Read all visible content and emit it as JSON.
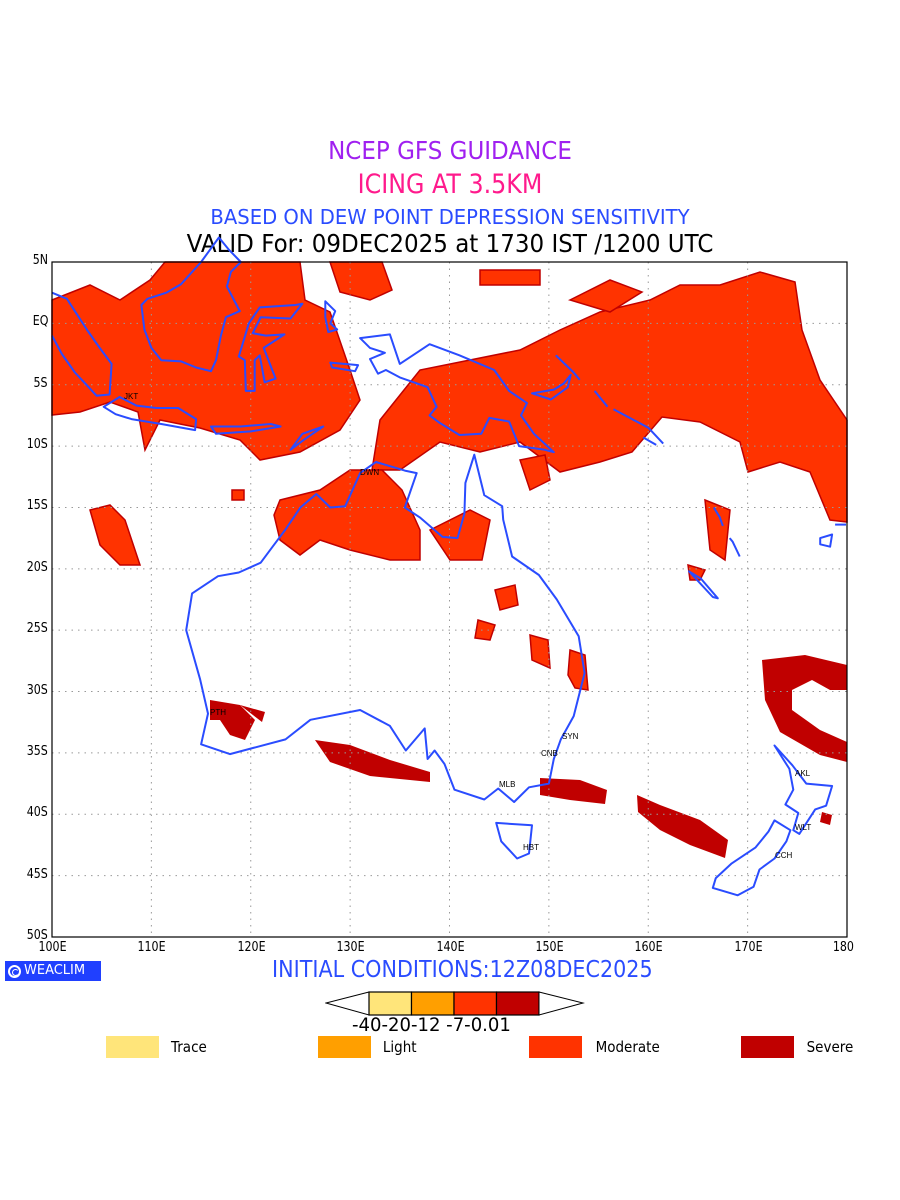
{
  "title": {
    "line1": "NCEP GFS GUIDANCE",
    "line2": "ICING AT 3.5KM",
    "line3": "BASED ON DEW POINT DEPRESSION SENSITIVITY",
    "line4": "VALID For: 09DEC2025 at 1730 IST /1200 UTC"
  },
  "axes": {
    "lat_ticks": [
      "5N",
      "EQ",
      "5S",
      "10S",
      "15S",
      "20S",
      "25S",
      "30S",
      "35S",
      "40S",
      "45S",
      "50S"
    ],
    "lon_ticks": [
      "100E",
      "110E",
      "120E",
      "130E",
      "140E",
      "150E",
      "160E",
      "170E",
      "180"
    ],
    "lat_range": [
      5,
      -50
    ],
    "lon_range": [
      100,
      180
    ]
  },
  "cities": [
    "JKT",
    "DWN",
    "PTH",
    "SYN",
    "CNB",
    "MLB",
    "HBT",
    "AKL",
    "WLT",
    "CCH"
  ],
  "logo_text": "WEACLIM",
  "initial_conditions": "INITIAL CONDITIONS:12Z08DEC2025",
  "colorbar": {
    "labels": "-40-20-12 -7-0.01",
    "colors": [
      "#ffe57a",
      "#ff9f00",
      "#ff3300",
      "#c00000"
    ]
  },
  "legend": [
    {
      "label": "Trace",
      "color": "#ffe57a"
    },
    {
      "label": "Light",
      "color": "#ff9f00"
    },
    {
      "label": "Moderate",
      "color": "#ff3300"
    },
    {
      "label": "Severe",
      "color": "#c00000"
    }
  ],
  "colors": {
    "coast": "#2a4cff",
    "moderate": "#ff3300",
    "severe": "#c00000"
  }
}
